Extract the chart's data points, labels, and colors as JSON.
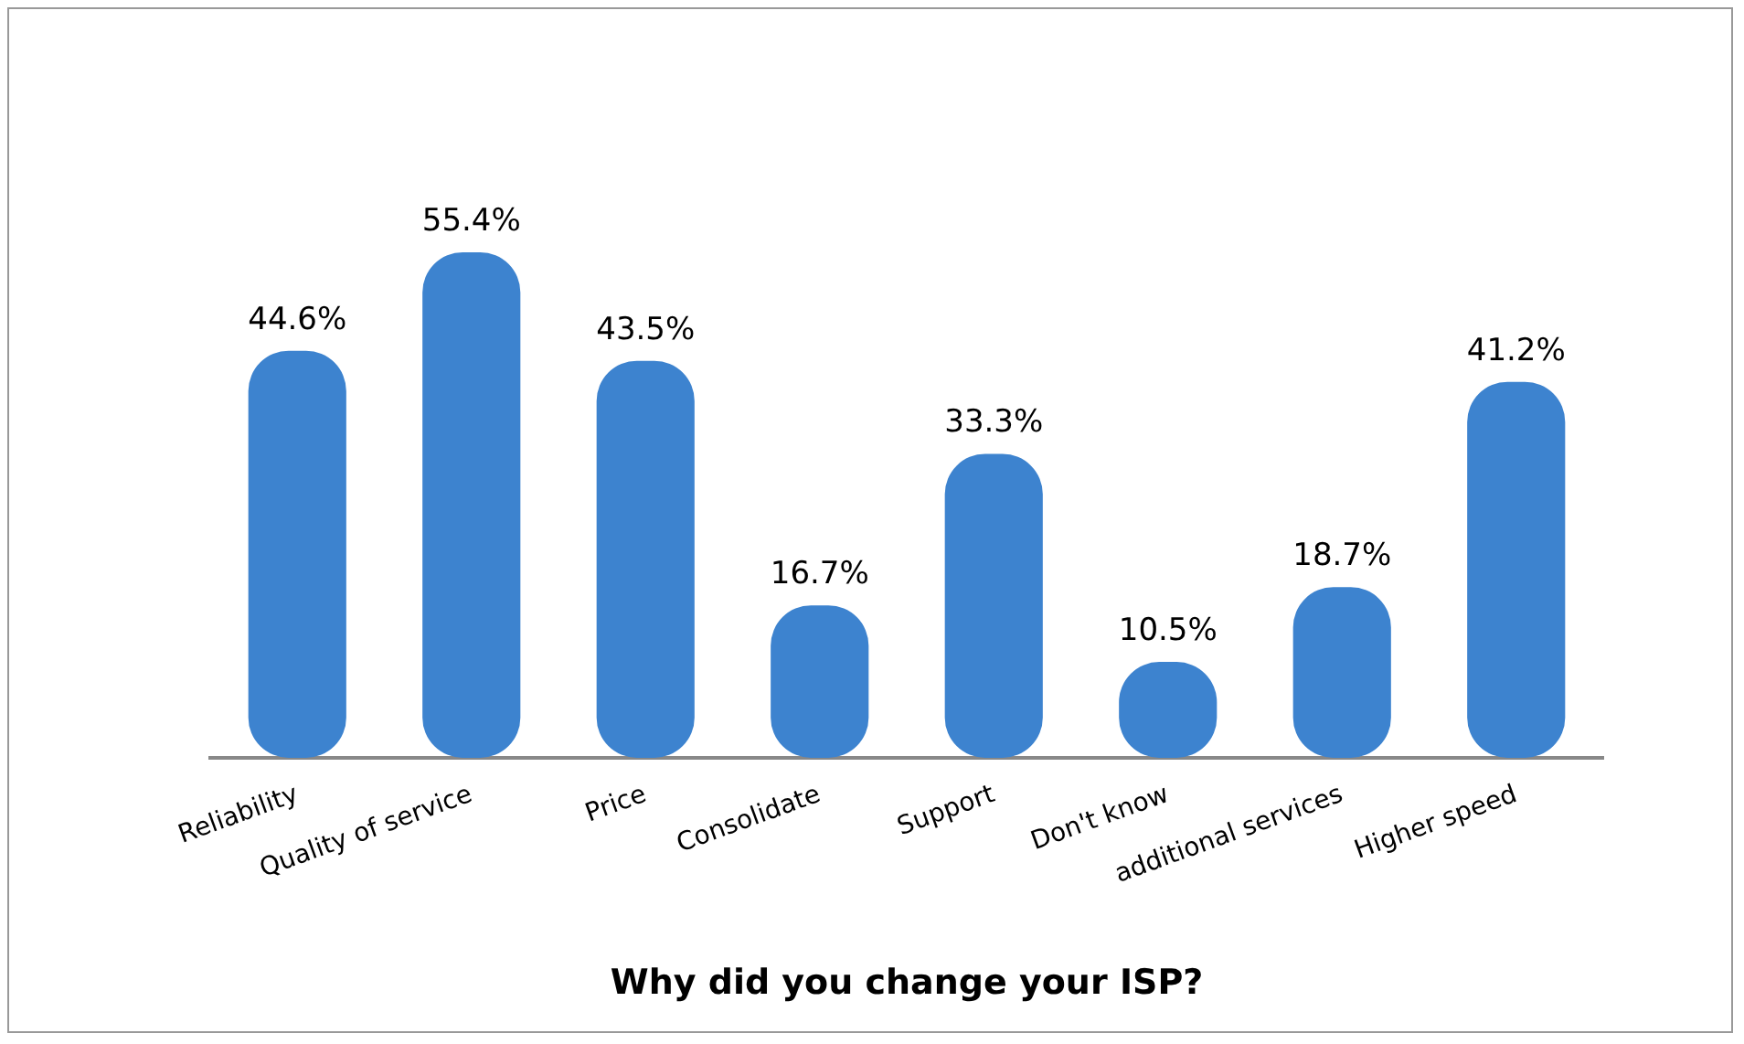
{
  "chart_data": {
    "type": "bar",
    "xlabel": "Why did you change your ISP?",
    "categories": [
      "Reliability",
      "Quality of service",
      "Price",
      "Consolidate",
      "Support",
      "Don't know",
      "additional services",
      "Higher speed"
    ],
    "values": [
      44.6,
      55.4,
      43.5,
      16.7,
      33.3,
      10.5,
      18.7,
      41.2
    ],
    "value_labels": [
      "44.6%",
      "55.4%",
      "43.5%",
      "16.7%",
      "33.3%",
      "10.5%",
      "18.7%",
      "41.2%"
    ],
    "color": "#3d83cf",
    "grid": false,
    "legend": false,
    "tick_labels": "x"
  }
}
